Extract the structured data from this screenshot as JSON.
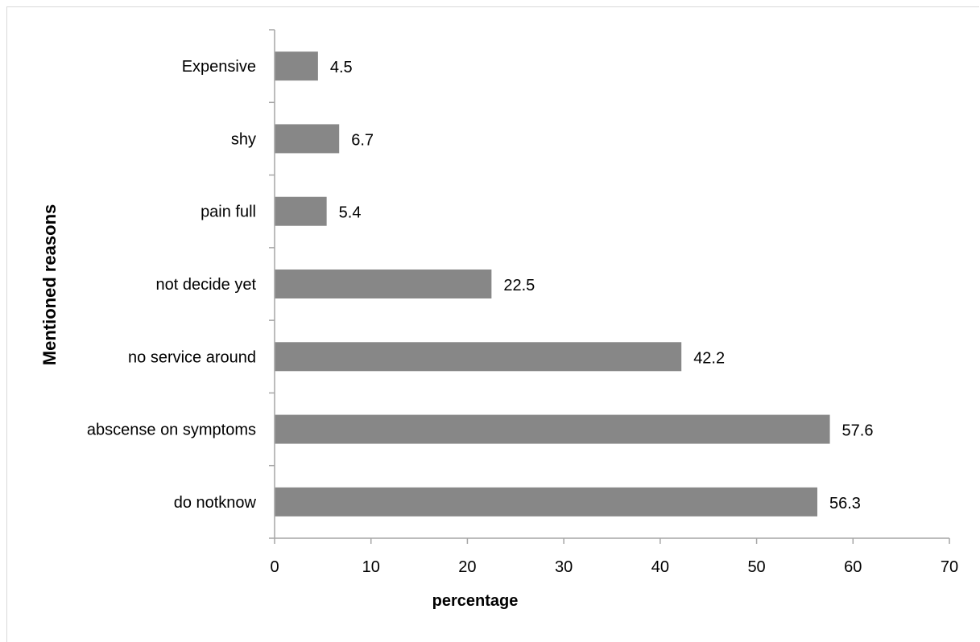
{
  "chart_data": {
    "type": "bar",
    "orientation": "horizontal",
    "categories": [
      "Expensive",
      "shy",
      "pain full",
      "not decide yet",
      "no service around",
      "abscense on symptoms",
      "do notknow"
    ],
    "values": [
      4.5,
      6.7,
      5.4,
      22.5,
      42.2,
      57.6,
      56.3
    ],
    "value_labels": [
      "4.5",
      "6.7",
      "5.4",
      "22.5",
      "42.2",
      "57.6",
      "56.3"
    ],
    "xlabel": "percentage",
    "ylabel": "Mentioned reasons",
    "xlim": [
      0,
      70
    ],
    "xticks": [
      0,
      10,
      20,
      30,
      40,
      50,
      60,
      70
    ],
    "bar_color": "#878787",
    "axis_color": "#a6a6a6",
    "grid": false,
    "legend": "none"
  }
}
